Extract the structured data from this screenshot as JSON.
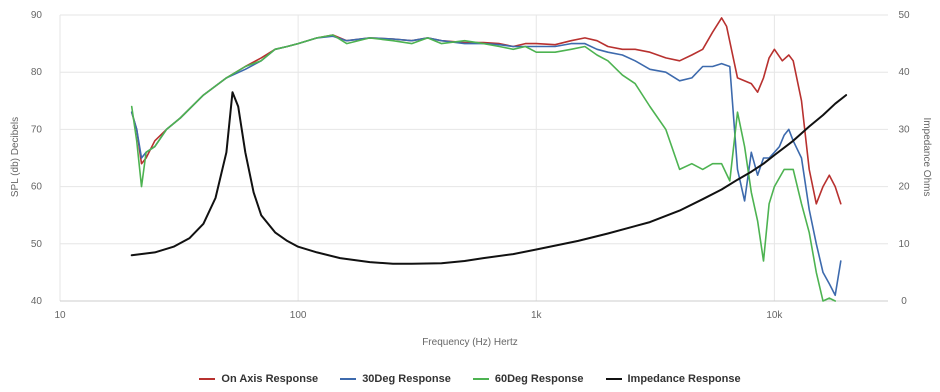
{
  "chart_data": {
    "type": "line",
    "title": "",
    "xlabel": "Frequency (Hz) Hertz",
    "ylabel": "SPL (db) Decibels",
    "y2label": "Impedance Ohms",
    "x_scale": "log",
    "xlim": [
      10,
      30000
    ],
    "ylim": [
      40,
      90
    ],
    "y2lim": [
      0,
      50
    ],
    "x_ticks": [
      {
        "value": 10,
        "label": "10"
      },
      {
        "value": 100,
        "label": "100"
      },
      {
        "value": 1000,
        "label": "1k"
      },
      {
        "value": 10000,
        "label": "10k"
      }
    ],
    "y_ticks": [
      "40",
      "50",
      "60",
      "70",
      "80",
      "90"
    ],
    "y2_ticks": [
      "0",
      "10",
      "20",
      "30",
      "40",
      "50"
    ],
    "grid": true,
    "legend_position": "bottom",
    "series": [
      {
        "name": "On Axis Response",
        "axis": "left",
        "color": "#b8312f",
        "points": [
          [
            20,
            73
          ],
          [
            21,
            70
          ],
          [
            22,
            64
          ],
          [
            23,
            65
          ],
          [
            25,
            68
          ],
          [
            28,
            70
          ],
          [
            32,
            72
          ],
          [
            40,
            76
          ],
          [
            50,
            79
          ],
          [
            60,
            81
          ],
          [
            70,
            82.5
          ],
          [
            80,
            84
          ],
          [
            90,
            84.5
          ],
          [
            100,
            85
          ],
          [
            120,
            86
          ],
          [
            140,
            86.5
          ],
          [
            160,
            85.5
          ],
          [
            200,
            86
          ],
          [
            250,
            85.8
          ],
          [
            300,
            85.5
          ],
          [
            350,
            86
          ],
          [
            400,
            85.5
          ],
          [
            500,
            85.2
          ],
          [
            600,
            85.2
          ],
          [
            700,
            85
          ],
          [
            800,
            84.5
          ],
          [
            900,
            85
          ],
          [
            1000,
            85
          ],
          [
            1200,
            84.8
          ],
          [
            1400,
            85.5
          ],
          [
            1600,
            86
          ],
          [
            1800,
            85.5
          ],
          [
            2000,
            84.5
          ],
          [
            2300,
            84
          ],
          [
            2600,
            84
          ],
          [
            3000,
            83.5
          ],
          [
            3500,
            82.5
          ],
          [
            4000,
            82
          ],
          [
            4500,
            83
          ],
          [
            5000,
            84
          ],
          [
            5500,
            87
          ],
          [
            6000,
            89.5
          ],
          [
            6300,
            88
          ],
          [
            7000,
            79
          ],
          [
            8000,
            78
          ],
          [
            8500,
            76.5
          ],
          [
            9000,
            79
          ],
          [
            9500,
            82.5
          ],
          [
            10000,
            84
          ],
          [
            10800,
            82
          ],
          [
            11500,
            83
          ],
          [
            12000,
            82
          ],
          [
            13000,
            75
          ],
          [
            14000,
            63
          ],
          [
            15000,
            57
          ],
          [
            16000,
            60
          ],
          [
            17000,
            62
          ],
          [
            18000,
            60
          ],
          [
            19000,
            57
          ]
        ]
      },
      {
        "name": "30Deg Response",
        "axis": "left",
        "color": "#3d6aad",
        "points": [
          [
            20,
            73
          ],
          [
            21,
            70
          ],
          [
            22,
            65
          ],
          [
            23,
            66
          ],
          [
            25,
            67
          ],
          [
            28,
            70
          ],
          [
            32,
            72
          ],
          [
            40,
            76
          ],
          [
            50,
            79
          ],
          [
            60,
            80.5
          ],
          [
            70,
            82
          ],
          [
            80,
            84
          ],
          [
            90,
            84.5
          ],
          [
            100,
            85
          ],
          [
            120,
            86
          ],
          [
            140,
            86.3
          ],
          [
            160,
            85.5
          ],
          [
            200,
            86
          ],
          [
            250,
            85.8
          ],
          [
            300,
            85.5
          ],
          [
            350,
            86
          ],
          [
            400,
            85.5
          ],
          [
            500,
            85
          ],
          [
            600,
            85
          ],
          [
            700,
            84.8
          ],
          [
            800,
            84.5
          ],
          [
            900,
            84.5
          ],
          [
            1000,
            84.5
          ],
          [
            1200,
            84.5
          ],
          [
            1400,
            85
          ],
          [
            1600,
            85
          ],
          [
            1800,
            84
          ],
          [
            2000,
            83.5
          ],
          [
            2300,
            83
          ],
          [
            2600,
            82
          ],
          [
            3000,
            80.5
          ],
          [
            3500,
            80
          ],
          [
            4000,
            78.5
          ],
          [
            4500,
            79
          ],
          [
            5000,
            81
          ],
          [
            5500,
            81
          ],
          [
            6000,
            81.5
          ],
          [
            6500,
            81
          ],
          [
            7000,
            63
          ],
          [
            7500,
            57.5
          ],
          [
            8000,
            66
          ],
          [
            8500,
            62
          ],
          [
            9000,
            65
          ],
          [
            9500,
            65
          ],
          [
            10000,
            66
          ],
          [
            10500,
            67
          ],
          [
            11000,
            69
          ],
          [
            11500,
            70
          ],
          [
            12000,
            68
          ],
          [
            13000,
            65
          ],
          [
            14000,
            56
          ],
          [
            15000,
            50
          ],
          [
            16000,
            45
          ],
          [
            17000,
            43
          ],
          [
            18000,
            41
          ],
          [
            19000,
            47
          ]
        ]
      },
      {
        "name": "60Deg Response",
        "axis": "left",
        "color": "#4db351",
        "points": [
          [
            20,
            74
          ],
          [
            21,
            68
          ],
          [
            22,
            60
          ],
          [
            23,
            66
          ],
          [
            25,
            67
          ],
          [
            28,
            70
          ],
          [
            32,
            72
          ],
          [
            40,
            76
          ],
          [
            50,
            79
          ],
          [
            60,
            81
          ],
          [
            70,
            82
          ],
          [
            80,
            84
          ],
          [
            90,
            84.5
          ],
          [
            100,
            85
          ],
          [
            120,
            86
          ],
          [
            140,
            86.5
          ],
          [
            160,
            85
          ],
          [
            200,
            86
          ],
          [
            250,
            85.5
          ],
          [
            300,
            85
          ],
          [
            350,
            86
          ],
          [
            400,
            85
          ],
          [
            500,
            85.5
          ],
          [
            600,
            85
          ],
          [
            700,
            84.5
          ],
          [
            800,
            84
          ],
          [
            900,
            84.5
          ],
          [
            1000,
            83.5
          ],
          [
            1200,
            83.5
          ],
          [
            1400,
            84
          ],
          [
            1600,
            84.5
          ],
          [
            1800,
            83
          ],
          [
            2000,
            82
          ],
          [
            2300,
            79.5
          ],
          [
            2600,
            78
          ],
          [
            3000,
            74
          ],
          [
            3500,
            70
          ],
          [
            4000,
            63
          ],
          [
            4500,
            64
          ],
          [
            5000,
            63
          ],
          [
            5500,
            64
          ],
          [
            6000,
            64
          ],
          [
            6500,
            61
          ],
          [
            7000,
            73
          ],
          [
            7500,
            67
          ],
          [
            8000,
            59
          ],
          [
            8500,
            54
          ],
          [
            9000,
            47
          ],
          [
            9500,
            57
          ],
          [
            10000,
            60
          ],
          [
            11000,
            63
          ],
          [
            12000,
            63
          ],
          [
            13000,
            57
          ],
          [
            14000,
            52
          ],
          [
            15000,
            45
          ],
          [
            16000,
            40
          ],
          [
            17000,
            40.5
          ],
          [
            18000,
            40
          ]
        ]
      },
      {
        "name": "Impedance Response",
        "axis": "right",
        "color": "#111111",
        "points": [
          [
            20,
            8
          ],
          [
            25,
            8.5
          ],
          [
            30,
            9.5
          ],
          [
            35,
            11
          ],
          [
            40,
            13.5
          ],
          [
            45,
            18
          ],
          [
            50,
            26
          ],
          [
            53,
            36.5
          ],
          [
            56,
            34
          ],
          [
            60,
            26
          ],
          [
            65,
            19
          ],
          [
            70,
            15
          ],
          [
            80,
            12
          ],
          [
            90,
            10.5
          ],
          [
            100,
            9.5
          ],
          [
            120,
            8.5
          ],
          [
            150,
            7.5
          ],
          [
            200,
            6.8
          ],
          [
            250,
            6.5
          ],
          [
            300,
            6.5
          ],
          [
            400,
            6.6
          ],
          [
            500,
            7
          ],
          [
            600,
            7.5
          ],
          [
            800,
            8.2
          ],
          [
            1000,
            9
          ],
          [
            1500,
            10.5
          ],
          [
            2000,
            11.8
          ],
          [
            3000,
            13.8
          ],
          [
            4000,
            15.8
          ],
          [
            5000,
            17.8
          ],
          [
            6000,
            19.5
          ],
          [
            7000,
            21.2
          ],
          [
            8000,
            22.6
          ],
          [
            9000,
            24
          ],
          [
            10000,
            25.5
          ],
          [
            12000,
            28
          ],
          [
            14000,
            30.5
          ],
          [
            16000,
            32.5
          ],
          [
            18000,
            34.5
          ],
          [
            20000,
            36
          ]
        ]
      }
    ]
  }
}
